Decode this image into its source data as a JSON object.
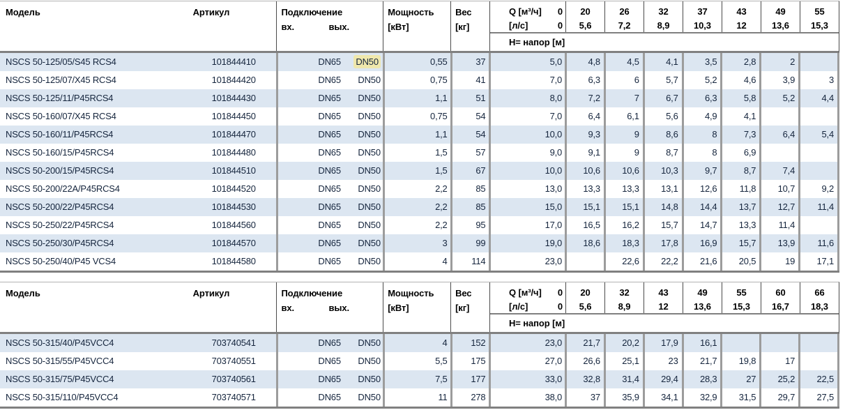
{
  "colors": {
    "stripe_blue": "#dce6f1",
    "grid_gray": "#9c9c9c",
    "rule_gray": "#808080",
    "highlight_yellow": "#efe7ac",
    "text_navy": "#15253d"
  },
  "tables": [
    {
      "header": {
        "model": "Модель",
        "artikul": "Артикул",
        "connection": "Подключение",
        "inlet": "вх.",
        "outlet": "вых.",
        "power_line1": "Мощность",
        "power_line2": "[кВт]",
        "weight_line1": "Вес",
        "weight_line2": "[кг]",
        "q_row1_label": "Q [м³/ч]",
        "q_row1_value": "0",
        "q_row2_label": "[л/с]",
        "q_row2_value": "0",
        "head_band": "H= напор [м]"
      },
      "q_columns": [
        {
          "m3h": "20",
          "ls": "5,6"
        },
        {
          "m3h": "26",
          "ls": "7,2"
        },
        {
          "m3h": "32",
          "ls": "8,9"
        },
        {
          "m3h": "37",
          "ls": "10,3"
        },
        {
          "m3h": "43",
          "ls": "12"
        },
        {
          "m3h": "49",
          "ls": "13,6"
        },
        {
          "m3h": "55",
          "ls": "15,3"
        }
      ],
      "rows": [
        {
          "model": "NSCS 50-125/05/S45 RCS4",
          "artikul": "101844410",
          "inlet": "DN65",
          "outlet": "DN50",
          "outlet_highlight": true,
          "power": "0,55",
          "weight": "37",
          "q": [
            "5,0",
            "4,8",
            "4,5",
            "4,1",
            "3,5",
            "2,8",
            "2",
            ""
          ]
        },
        {
          "model": "NSCS 50-125/07/X45 RCS4",
          "artikul": "101844420",
          "inlet": "DN65",
          "outlet": "DN50",
          "outlet_highlight": false,
          "power": "0,75",
          "weight": "41",
          "q": [
            "7,0",
            "6,3",
            "6",
            "5,7",
            "5,2",
            "4,6",
            "3,9",
            "3"
          ]
        },
        {
          "model": "NSCS 50-125/11/P45RCS4",
          "artikul": "101844430",
          "inlet": "DN65",
          "outlet": "DN50",
          "outlet_highlight": false,
          "power": "1,1",
          "weight": "51",
          "q": [
            "8,0",
            "7,2",
            "7",
            "6,7",
            "6,3",
            "5,8",
            "5,2",
            "4,4"
          ]
        },
        {
          "model": "NSCS 50-160/07/X45 RCS4",
          "artikul": "101844450",
          "inlet": "DN65",
          "outlet": "DN50",
          "outlet_highlight": false,
          "power": "0,75",
          "weight": "54",
          "q": [
            "7,0",
            "6,4",
            "6,1",
            "5,6",
            "4,9",
            "4,1",
            "",
            ""
          ]
        },
        {
          "model": "NSCS 50-160/11/P45RCS4",
          "artikul": "101844470",
          "inlet": "DN65",
          "outlet": "DN50",
          "outlet_highlight": false,
          "power": "1,1",
          "weight": "54",
          "q": [
            "10,0",
            "9,3",
            "9",
            "8,6",
            "8",
            "7,3",
            "6,4",
            "5,4"
          ]
        },
        {
          "model": "NSCS 50-160/15/P45RCS4",
          "artikul": "101844480",
          "inlet": "DN65",
          "outlet": "DN50",
          "outlet_highlight": false,
          "power": "1,5",
          "weight": "57",
          "q": [
            "9,0",
            "9,1",
            "9",
            "8,7",
            "8",
            "6,9",
            "",
            ""
          ]
        },
        {
          "model": "NSCS 50-200/15/P45RCS4",
          "artikul": "101844510",
          "inlet": "DN65",
          "outlet": "DN50",
          "outlet_highlight": false,
          "power": "1,5",
          "weight": "67",
          "q": [
            "10,0",
            "10,6",
            "10,6",
            "10,3",
            "9,7",
            "8,7",
            "7,4",
            ""
          ]
        },
        {
          "model": "NSCS 50-200/22A/P45RCS4",
          "artikul": "101844520",
          "inlet": "DN65",
          "outlet": "DN50",
          "outlet_highlight": false,
          "power": "2,2",
          "weight": "85",
          "q": [
            "13,0",
            "13,3",
            "13,3",
            "13,1",
            "12,6",
            "11,8",
            "10,7",
            "9,2"
          ]
        },
        {
          "model": "NSCS 50-200/22/P45RCS4",
          "artikul": "101844530",
          "inlet": "DN65",
          "outlet": "DN50",
          "outlet_highlight": false,
          "power": "2,2",
          "weight": "85",
          "q": [
            "15,0",
            "15,1",
            "15,1",
            "14,8",
            "14,4",
            "13,7",
            "12,7",
            "11,4"
          ]
        },
        {
          "model": "NSCS 50-250/22/P45RCS4",
          "artikul": "101844560",
          "inlet": "DN65",
          "outlet": "DN50",
          "outlet_highlight": false,
          "power": "2,2",
          "weight": "95",
          "q": [
            "17,0",
            "16,5",
            "16,2",
            "15,7",
            "14,7",
            "13,3",
            "11,4",
            ""
          ]
        },
        {
          "model": "NSCS 50-250/30/P45RCS4",
          "artikul": "101844570",
          "inlet": "DN65",
          "outlet": "DN50",
          "outlet_highlight": false,
          "power": "3",
          "weight": "99",
          "q": [
            "19,0",
            "18,6",
            "18,3",
            "17,8",
            "16,9",
            "15,7",
            "13,9",
            "11,6"
          ]
        },
        {
          "model": "NSCS 50-250/40/P45 VCS4",
          "artikul": "101844580",
          "inlet": "DN65",
          "outlet": "DN50",
          "outlet_highlight": false,
          "power": "4",
          "weight": "114",
          "q": [
            "23,0",
            "",
            "22,6",
            "22,2",
            "21,6",
            "20,5",
            "19",
            "17,1"
          ]
        }
      ]
    },
    {
      "header": {
        "model": "Модель",
        "artikul": "Артикул",
        "connection": "Подключение",
        "inlet": "вх.",
        "outlet": "вых.",
        "power_line1": "Мощность",
        "power_line2": "[кВт]",
        "weight_line1": "Вес",
        "weight_line2": "[кг]",
        "q_row1_label": "Q [м³/ч]",
        "q_row1_value": "0",
        "q_row2_label": "[л/с]",
        "q_row2_value": "0",
        "head_band": "H= напор [м]"
      },
      "q_columns": [
        {
          "m3h": "20",
          "ls": "5,6"
        },
        {
          "m3h": "32",
          "ls": "8,9"
        },
        {
          "m3h": "43",
          "ls": "12"
        },
        {
          "m3h": "49",
          "ls": "13,6"
        },
        {
          "m3h": "55",
          "ls": "15,3"
        },
        {
          "m3h": "60",
          "ls": "16,7"
        },
        {
          "m3h": "66",
          "ls": "18,3"
        }
      ],
      "rows": [
        {
          "model": "NSCS 50-315/40/P45VCC4",
          "artikul": "703740541",
          "inlet": "DN65",
          "outlet": "DN50",
          "outlet_highlight": false,
          "power": "4",
          "weight": "152",
          "q": [
            "23,0",
            "21,7",
            "20,2",
            "17,9",
            "16,1",
            "",
            "",
            ""
          ]
        },
        {
          "model": "NSCS 50-315/55/P45VCC4",
          "artikul": "703740551",
          "inlet": "DN65",
          "outlet": "DN50",
          "outlet_highlight": false,
          "power": "5,5",
          "weight": "175",
          "q": [
            "27,0",
            "26,6",
            "25,1",
            "23",
            "21,7",
            "19,8",
            "17",
            ""
          ]
        },
        {
          "model": "NSCS 50-315/75/P45VCC4",
          "artikul": "703740561",
          "inlet": "DN65",
          "outlet": "DN50",
          "outlet_highlight": false,
          "power": "7,5",
          "weight": "177",
          "q": [
            "33,0",
            "32,8",
            "31,4",
            "29,4",
            "28,3",
            "27",
            "25,2",
            "22,5"
          ]
        },
        {
          "model": "NSCS 50-315/110/P45VCC4",
          "artikul": "703740571",
          "inlet": "DN65",
          "outlet": "DN50",
          "outlet_highlight": false,
          "power": "11",
          "weight": "278",
          "q": [
            "38,0",
            "37",
            "35,9",
            "34,1",
            "32,9",
            "31,5",
            "29,7",
            "27,5"
          ]
        }
      ]
    }
  ]
}
